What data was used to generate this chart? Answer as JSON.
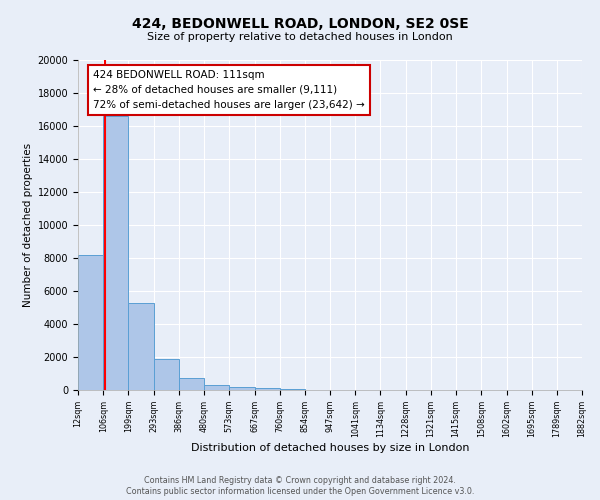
{
  "title": "424, BEDONWELL ROAD, LONDON, SE2 0SE",
  "subtitle": "Size of property relative to detached houses in London",
  "xlabel": "Distribution of detached houses by size in London",
  "ylabel": "Number of detached properties",
  "bar_color": "#aec6e8",
  "bar_edge_color": "#5a9fd4",
  "background_color": "#e8eef8",
  "grid_color": "#ffffff",
  "red_line_x": 111,
  "annotation_line1": "424 BEDONWELL ROAD: 111sqm",
  "annotation_line2": "← 28% of detached houses are smaller (9,111)",
  "annotation_line3": "72% of semi-detached houses are larger (23,642) →",
  "footer1": "Contains HM Land Registry data © Crown copyright and database right 2024.",
  "footer2": "Contains public sector information licensed under the Open Government Licence v3.0.",
  "bin_edges": [
    12,
    106,
    199,
    293,
    386,
    480,
    573,
    667,
    760,
    854,
    947,
    1041,
    1134,
    1228,
    1321,
    1415,
    1508,
    1602,
    1695,
    1789,
    1882
  ],
  "bin_labels": [
    "12sqm",
    "106sqm",
    "199sqm",
    "293sqm",
    "386sqm",
    "480sqm",
    "573sqm",
    "667sqm",
    "760sqm",
    "854sqm",
    "947sqm",
    "1041sqm",
    "1134sqm",
    "1228sqm",
    "1321sqm",
    "1415sqm",
    "1508sqm",
    "1602sqm",
    "1695sqm",
    "1789sqm",
    "1882sqm"
  ],
  "bar_heights": [
    8200,
    16600,
    5300,
    1850,
    750,
    300,
    200,
    100,
    50,
    0,
    0,
    0,
    0,
    0,
    0,
    0,
    0,
    0,
    0,
    0
  ],
  "ylim": [
    0,
    20000
  ],
  "yticks": [
    0,
    2000,
    4000,
    6000,
    8000,
    10000,
    12000,
    14000,
    16000,
    18000,
    20000
  ]
}
